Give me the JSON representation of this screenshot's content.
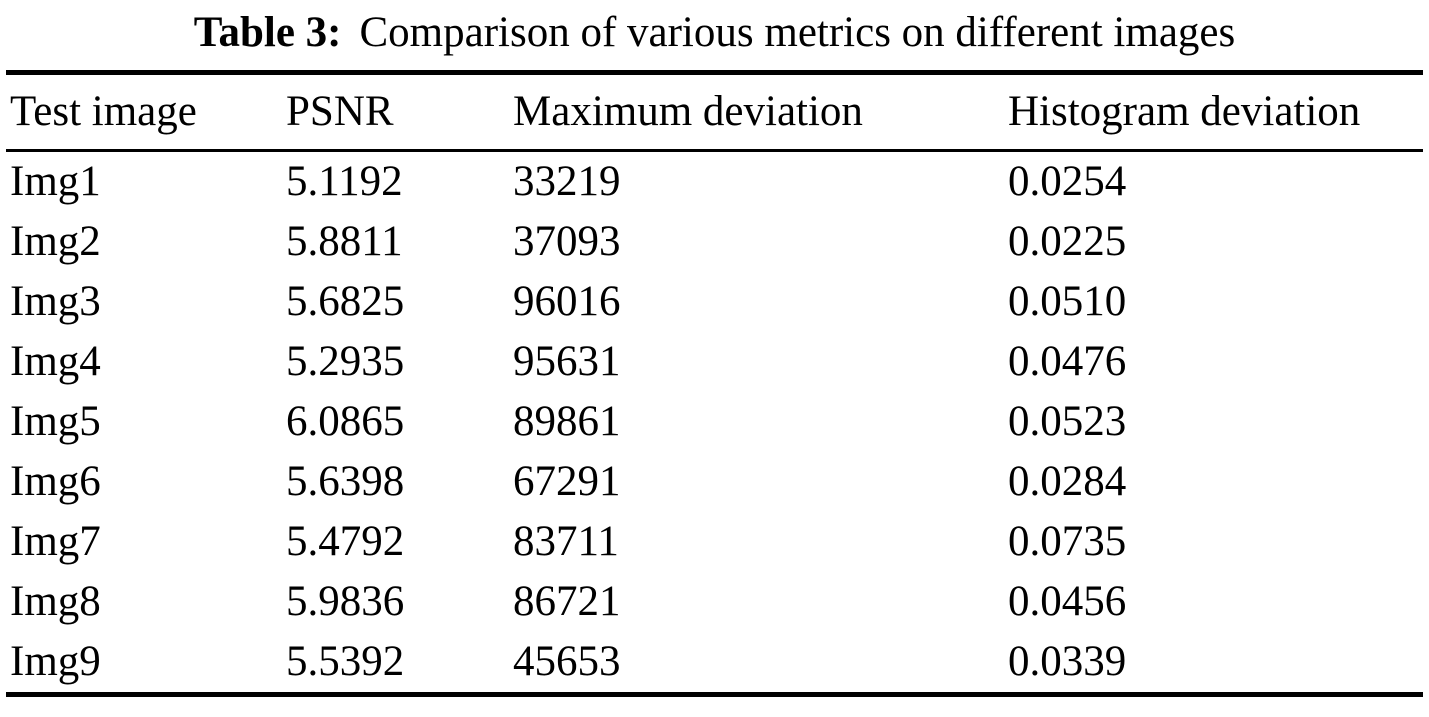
{
  "table": {
    "caption": {
      "label": "Table 3:",
      "text": "Comparison of various metrics on different images"
    },
    "columns": [
      "Test image",
      "PSNR",
      "Maximum deviation",
      "Histogram deviation"
    ],
    "rows": [
      {
        "image": "Img1",
        "psnr": "5.1192",
        "max_dev": "33219",
        "hist_dev": "0.0254"
      },
      {
        "image": "Img2",
        "psnr": "5.8811",
        "max_dev": "37093",
        "hist_dev": "0.0225"
      },
      {
        "image": "Img3",
        "psnr": "5.6825",
        "max_dev": "96016",
        "hist_dev": "0.0510"
      },
      {
        "image": "Img4",
        "psnr": "5.2935",
        "max_dev": "95631",
        "hist_dev": "0.0476"
      },
      {
        "image": "Img5",
        "psnr": "6.0865",
        "max_dev": "89861",
        "hist_dev": "0.0523"
      },
      {
        "image": "Img6",
        "psnr": "5.6398",
        "max_dev": "67291",
        "hist_dev": "0.0284"
      },
      {
        "image": "Img7",
        "psnr": "5.4792",
        "max_dev": "83711",
        "hist_dev": "0.0735"
      },
      {
        "image": "Img8",
        "psnr": "5.9836",
        "max_dev": "86721",
        "hist_dev": "0.0456"
      },
      {
        "image": "Img9",
        "psnr": "5.5392",
        "max_dev": "45653",
        "hist_dev": "0.0339"
      }
    ]
  },
  "chart_data": {
    "type": "table",
    "title": "Table 3: Comparison of various metrics on different images",
    "categories": [
      "Img1",
      "Img2",
      "Img3",
      "Img4",
      "Img5",
      "Img6",
      "Img7",
      "Img8",
      "Img9"
    ],
    "series": [
      {
        "name": "PSNR",
        "values": [
          5.1192,
          5.8811,
          5.6825,
          5.2935,
          6.0865,
          5.6398,
          5.4792,
          5.9836,
          5.5392
        ]
      },
      {
        "name": "Maximum deviation",
        "values": [
          33219,
          37093,
          96016,
          95631,
          89861,
          67291,
          83711,
          86721,
          45653
        ]
      },
      {
        "name": "Histogram deviation",
        "values": [
          0.0254,
          0.0225,
          0.051,
          0.0476,
          0.0523,
          0.0284,
          0.0735,
          0.0456,
          0.0339
        ]
      }
    ]
  }
}
